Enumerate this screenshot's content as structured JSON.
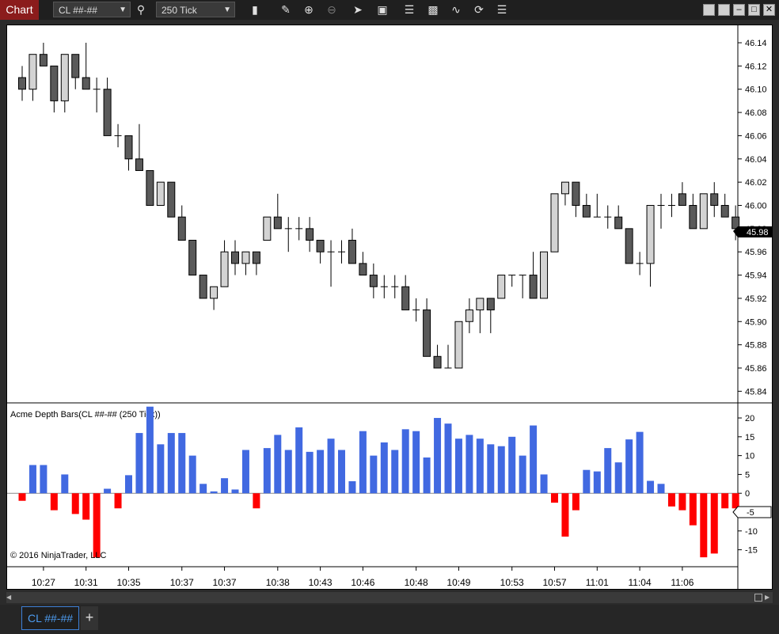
{
  "toolbar": {
    "chart_label": "Chart",
    "instrument": "CL ##-##",
    "interval": "250 Tick",
    "icons": [
      "magnifier-icon",
      "bar-type-icon",
      "pencil-icon",
      "zoom-in-icon",
      "zoom-out-icon",
      "pointer-icon",
      "data-box-icon",
      "chart-trader-icon",
      "strategies-icon",
      "indicators-icon",
      "refresh-icon",
      "properties-icon"
    ]
  },
  "window_buttons": [
    "tile-icon",
    "tile-icon",
    "minimize-icon",
    "maximize-icon",
    "close-icon"
  ],
  "price_panel": {
    "y_ticks": [
      "46.14",
      "46.12",
      "46.10",
      "46.08",
      "46.06",
      "46.04",
      "46.02",
      "46.00",
      "45.98",
      "45.96",
      "45.94",
      "45.92",
      "45.90",
      "45.88",
      "45.86",
      "45.84"
    ],
    "last_price": "45.98",
    "up_color": "#d3d3d3",
    "down_color": "#5a5a5a"
  },
  "indicator_panel": {
    "label": "Acme Depth Bars(CL ##-## (250 Tick))",
    "y_ticks": [
      "20",
      "15",
      "10",
      "5",
      "0",
      "-5",
      "-10",
      "-15"
    ],
    "marker_value": "-5",
    "positive_color": "#4169e1",
    "negative_color": "#ff0000",
    "copyright": "© 2016 NinjaTrader, LLC"
  },
  "x_axis": {
    "labels": [
      "10:27",
      "10:31",
      "10:35",
      "10:37",
      "10:37",
      "10:38",
      "10:43",
      "10:46",
      "10:48",
      "10:49",
      "10:53",
      "10:57",
      "11:01",
      "11:04",
      "11:06"
    ]
  },
  "tabs": {
    "active": "CL ##-##",
    "add": "+"
  },
  "chart_data": [
    {
      "type": "candlestick",
      "series": [
        {
          "name": "",
          "candles": [
            [
              46.11,
              46.12,
              46.09,
              46.1
            ],
            [
              46.1,
              46.13,
              46.09,
              46.13
            ],
            [
              46.13,
              46.14,
              46.12,
              46.12
            ],
            [
              46.12,
              46.12,
              46.08,
              46.09
            ],
            [
              46.09,
              46.13,
              46.08,
              46.13
            ],
            [
              46.13,
              46.13,
              46.1,
              46.11
            ],
            [
              46.11,
              46.14,
              46.1,
              46.1
            ],
            [
              46.1,
              46.11,
              46.08,
              46.1
            ],
            [
              46.1,
              46.11,
              46.06,
              46.06
            ],
            [
              46.06,
              46.07,
              46.05,
              46.06
            ],
            [
              46.06,
              46.06,
              46.03,
              46.04
            ],
            [
              46.04,
              46.07,
              46.03,
              46.03
            ],
            [
              46.03,
              46.03,
              46.0,
              46.0
            ],
            [
              46.0,
              46.02,
              46.0,
              46.02
            ],
            [
              46.02,
              46.02,
              45.99,
              45.99
            ],
            [
              45.99,
              46.0,
              45.97,
              45.97
            ],
            [
              45.97,
              45.97,
              45.94,
              45.94
            ],
            [
              45.94,
              45.94,
              45.92,
              45.92
            ],
            [
              45.92,
              45.93,
              45.91,
              45.93
            ],
            [
              45.93,
              45.97,
              45.93,
              45.96
            ],
            [
              45.96,
              45.97,
              45.94,
              45.95
            ],
            [
              45.95,
              45.96,
              45.94,
              45.96
            ],
            [
              45.96,
              45.96,
              45.94,
              45.95
            ],
            [
              45.97,
              45.99,
              45.97,
              45.99
            ],
            [
              45.99,
              46.01,
              45.98,
              45.98
            ],
            [
              45.98,
              45.99,
              45.96,
              45.98
            ],
            [
              45.98,
              45.99,
              45.97,
              45.98
            ],
            [
              45.98,
              45.99,
              45.96,
              45.97
            ],
            [
              45.97,
              45.97,
              45.95,
              45.96
            ],
            [
              45.96,
              45.97,
              45.93,
              45.96
            ],
            [
              45.96,
              45.97,
              45.95,
              45.96
            ],
            [
              45.97,
              45.98,
              45.95,
              45.95
            ],
            [
              45.95,
              45.96,
              45.94,
              45.94
            ],
            [
              45.94,
              45.95,
              45.92,
              45.93
            ],
            [
              45.93,
              45.94,
              45.92,
              45.93
            ],
            [
              45.93,
              45.94,
              45.92,
              45.93
            ],
            [
              45.93,
              45.94,
              45.91,
              45.91
            ],
            [
              45.91,
              45.92,
              45.9,
              45.91
            ],
            [
              45.91,
              45.92,
              45.87,
              45.87
            ],
            [
              45.87,
              45.88,
              45.86,
              45.86
            ],
            [
              45.86,
              45.88,
              45.86,
              45.86
            ],
            [
              45.86,
              45.9,
              45.86,
              45.9
            ],
            [
              45.9,
              45.92,
              45.89,
              45.91
            ],
            [
              45.91,
              45.92,
              45.89,
              45.92
            ],
            [
              45.92,
              45.92,
              45.89,
              45.91
            ],
            [
              45.92,
              45.94,
              45.92,
              45.94
            ],
            [
              45.94,
              45.94,
              45.93,
              45.94
            ],
            [
              45.94,
              45.94,
              45.92,
              45.94
            ],
            [
              45.94,
              45.96,
              45.92,
              45.92
            ],
            [
              45.92,
              45.96,
              45.92,
              45.96
            ],
            [
              45.96,
              46.01,
              45.96,
              46.01
            ],
            [
              46.01,
              46.02,
              46.0,
              46.02
            ],
            [
              46.02,
              46.02,
              45.99,
              46.0
            ],
            [
              46.0,
              46.01,
              45.99,
              45.99
            ],
            [
              45.99,
              46.01,
              45.99,
              45.99
            ],
            [
              45.99,
              46.0,
              45.98,
              45.99
            ],
            [
              45.99,
              46.0,
              45.98,
              45.98
            ],
            [
              45.98,
              45.98,
              45.95,
              45.95
            ],
            [
              45.95,
              45.96,
              45.94,
              45.95
            ],
            [
              45.95,
              46.0,
              45.93,
              46.0
            ],
            [
              46.0,
              46.01,
              45.98,
              46.0
            ],
            [
              46.0,
              46.01,
              45.99,
              46.0
            ],
            [
              46.01,
              46.02,
              46.0,
              46.0
            ],
            [
              46.0,
              46.01,
              45.98,
              45.98
            ],
            [
              45.98,
              46.01,
              45.98,
              46.01
            ],
            [
              46.01,
              46.02,
              45.99,
              46.0
            ],
            [
              46.0,
              46.01,
              45.99,
              45.99
            ],
            [
              45.99,
              46.0,
              45.97,
              45.98
            ]
          ]
        }
      ],
      "ylim": [
        45.83,
        46.155
      ]
    },
    {
      "type": "bar",
      "series": [
        {
          "name": "",
          "values": [
            -2,
            7.5,
            7.5,
            -4.5,
            5,
            -5.5,
            -7,
            -17,
            1.2,
            -4,
            4.8,
            16,
            23,
            13,
            16,
            16,
            10,
            2.5,
            0.5,
            4,
            1,
            11.5,
            -4,
            12,
            15.5,
            11.5,
            17.5,
            11,
            11.5,
            14.5,
            11.5,
            3.2,
            16.5,
            10,
            13.5,
            11.5,
            17,
            16.5,
            9.5,
            20,
            18.5,
            14.5,
            15.5,
            14.5,
            13,
            12.5,
            15,
            10,
            18,
            5,
            -2.5,
            -11.5,
            -4.5,
            6.2,
            5.8,
            12,
            8.2,
            14.3,
            16.3,
            3.3,
            2.5,
            -3.5,
            -4.5,
            -8.5,
            -17,
            -16,
            -4,
            -4
          ]
        }
      ],
      "ylim": [
        -19.5,
        24
      ]
    }
  ]
}
